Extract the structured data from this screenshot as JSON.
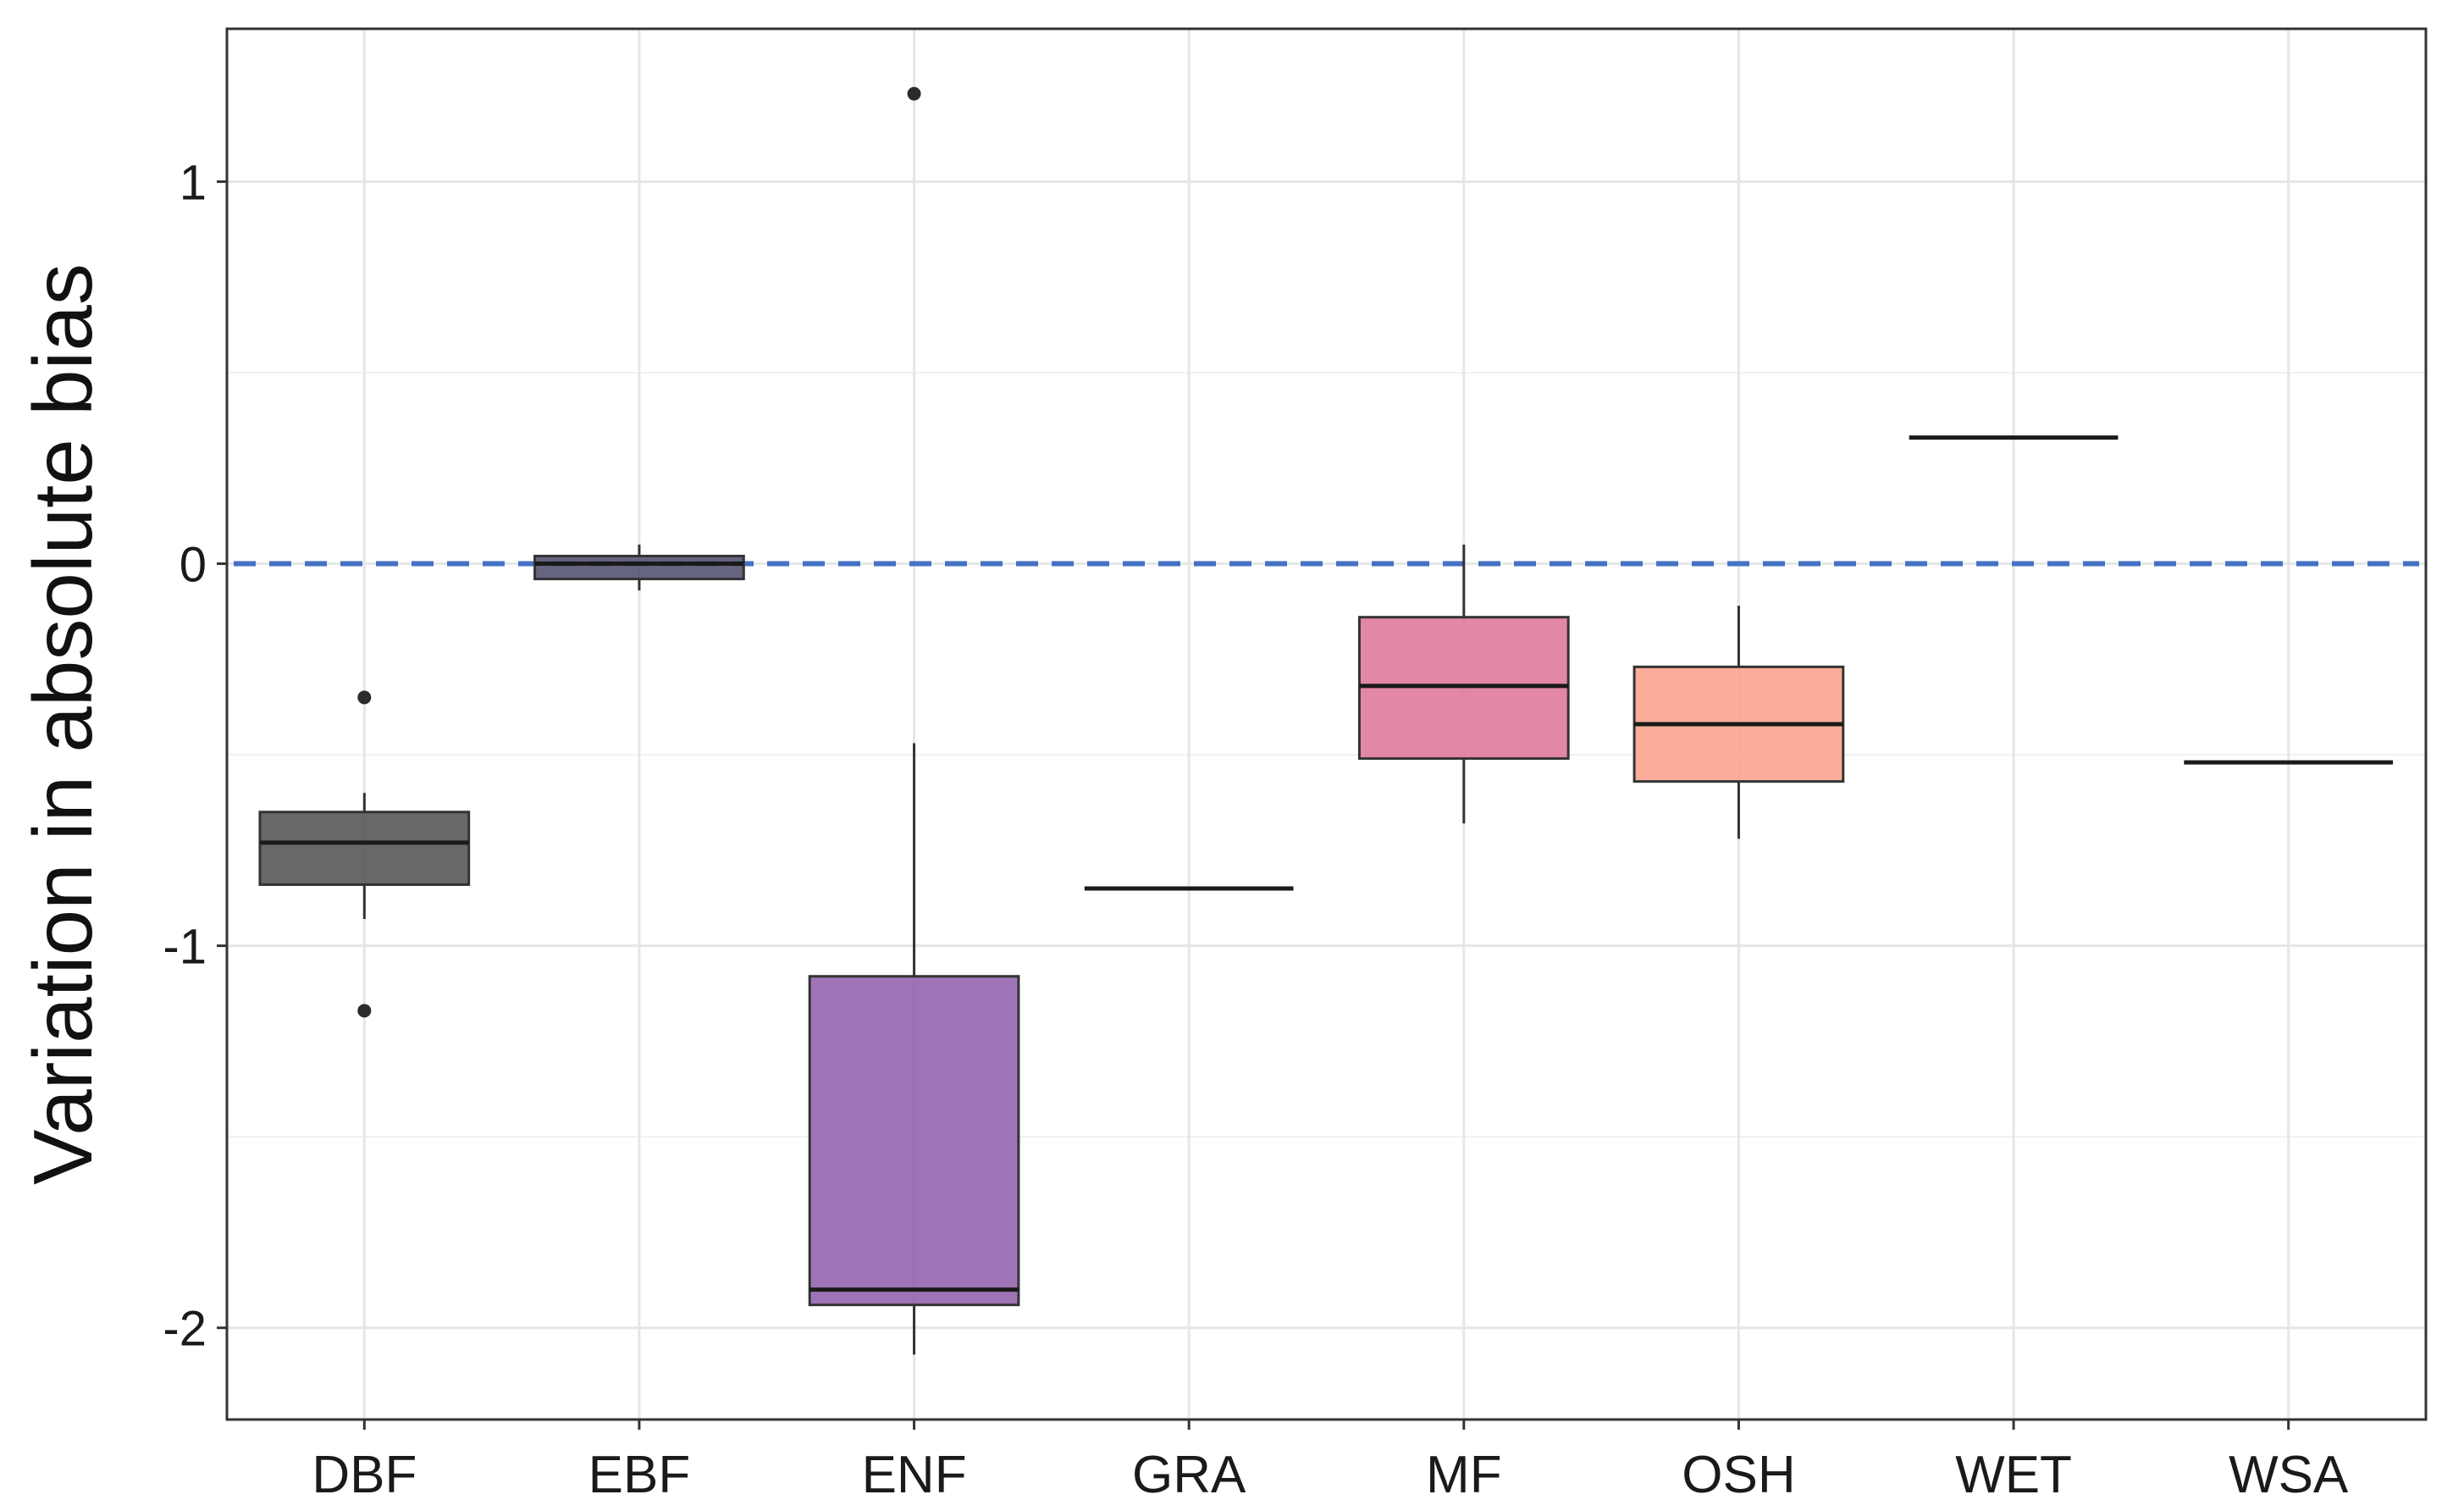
{
  "chart_data": {
    "type": "boxplot",
    "title": "",
    "xlabel": "",
    "ylabel": "Variation in absolute bias",
    "ylim": [
      -2.24,
      1.4
    ],
    "y_ticks": [
      -2,
      -1,
      0,
      1
    ],
    "y_tick_labels": [
      "-2",
      "-1",
      "0",
      "1"
    ],
    "grid": true,
    "reference_line": {
      "y": 0,
      "style": "dashed",
      "color": "#4472C4"
    },
    "categories": [
      "DBF",
      "EBF",
      "ENF",
      "GRA",
      "MF",
      "OSH",
      "WET",
      "WSA"
    ],
    "boxes": [
      {
        "category": "DBF",
        "color": "#4d4d4d",
        "lower_whisker": -0.93,
        "q1": -0.84,
        "median": -0.73,
        "q3": -0.65,
        "upper_whisker": -0.6,
        "outliers": [
          -0.35,
          -1.17
        ]
      },
      {
        "category": "EBF",
        "color": "#4a4a6a",
        "lower_whisker": -0.07,
        "q1": -0.04,
        "median": 0.0,
        "q3": 0.02,
        "upper_whisker": 0.05,
        "outliers": []
      },
      {
        "category": "ENF",
        "color": "#8e5ca9",
        "lower_whisker": -2.07,
        "q1": -1.94,
        "median": -1.9,
        "q3": -1.08,
        "upper_whisker": -0.47,
        "outliers": [
          1.23
        ]
      },
      {
        "category": "GRA",
        "color": "#1a1a1a",
        "lower_whisker": -0.85,
        "q1": -0.85,
        "median": -0.85,
        "q3": -0.85,
        "upper_whisker": -0.85,
        "outliers": []
      },
      {
        "category": "MF",
        "color": "#de7296",
        "lower_whisker": -0.68,
        "q1": -0.51,
        "median": -0.32,
        "q3": -0.14,
        "upper_whisker": 0.05,
        "outliers": []
      },
      {
        "category": "OSH",
        "color": "#f9a088",
        "lower_whisker": -0.72,
        "q1": -0.57,
        "median": -0.42,
        "q3": -0.27,
        "upper_whisker": -0.11,
        "outliers": []
      },
      {
        "category": "WET",
        "color": "#1a1a1a",
        "lower_whisker": 0.33,
        "q1": 0.33,
        "median": 0.33,
        "q3": 0.33,
        "upper_whisker": 0.33,
        "outliers": []
      },
      {
        "category": "WSA",
        "color": "#1a1a1a",
        "lower_whisker": -0.52,
        "q1": -0.52,
        "median": -0.52,
        "q3": -0.52,
        "upper_whisker": -0.52,
        "outliers": []
      }
    ]
  }
}
